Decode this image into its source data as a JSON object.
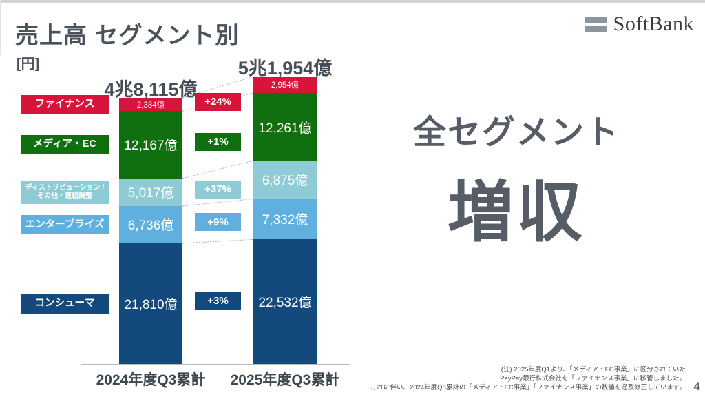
{
  "slide": {
    "title": "売上高 セグメント別",
    "unit_label": "[円]",
    "logo_text": "SoftBank",
    "headline_line1": "全セグメント",
    "headline_line2": "増収",
    "note_lines": [
      "(注) 2025年度Q1より、「メディア・EC事業」に区分されていた",
      "PayPay銀行株式会社を「ファイナンス事業」に移管しました。",
      "これに伴い、2024年度Q3累計の「メディア・EC事業」「ファイナンス事業」の数値を遡及修正しています。"
    ],
    "page_number": "4"
  },
  "chart_data": {
    "type": "bar",
    "stacked": true,
    "unit": "億円",
    "categories": [
      "2024年度Q3累計",
      "2025年度Q3累計"
    ],
    "totals_labels": [
      "4兆8,115億",
      "5兆1,954億"
    ],
    "totals_values": [
      48115,
      51954
    ],
    "legend_position": "left",
    "grid": false,
    "segments_top_to_bottom": [
      {
        "id": "finance",
        "name_lines": [
          "ファイナンス"
        ],
        "color": "#d8143a",
        "values": [
          2384,
          2954
        ],
        "value_labels": [
          "2,384億",
          "2,954億"
        ],
        "growth": "+24%"
      },
      {
        "id": "media-ec",
        "name_lines": [
          "メディア・EC"
        ],
        "color": "#10700f",
        "values": [
          12167,
          12261
        ],
        "value_labels": [
          "12,167億",
          "12,261億"
        ],
        "growth": "+1%"
      },
      {
        "id": "distribution-other",
        "name_lines": [
          "ディストリビューション /",
          "その他・連結調整"
        ],
        "color": "#8fcbd4",
        "values": [
          5017,
          6875
        ],
        "value_labels": [
          "5,017億",
          "6,875億"
        ],
        "growth": "+37%"
      },
      {
        "id": "enterprise",
        "name_lines": [
          "エンタープライズ"
        ],
        "color": "#5fb0df",
        "values": [
          6736,
          7332
        ],
        "value_labels": [
          "6,736億",
          "7,332億"
        ],
        "growth": "+9%"
      },
      {
        "id": "consumer",
        "name_lines": [
          "コンシューマ"
        ],
        "color": "#14497d",
        "values": [
          21810,
          22532
        ],
        "value_labels": [
          "21,810億",
          "22,532億"
        ],
        "growth": "+3%"
      }
    ]
  }
}
